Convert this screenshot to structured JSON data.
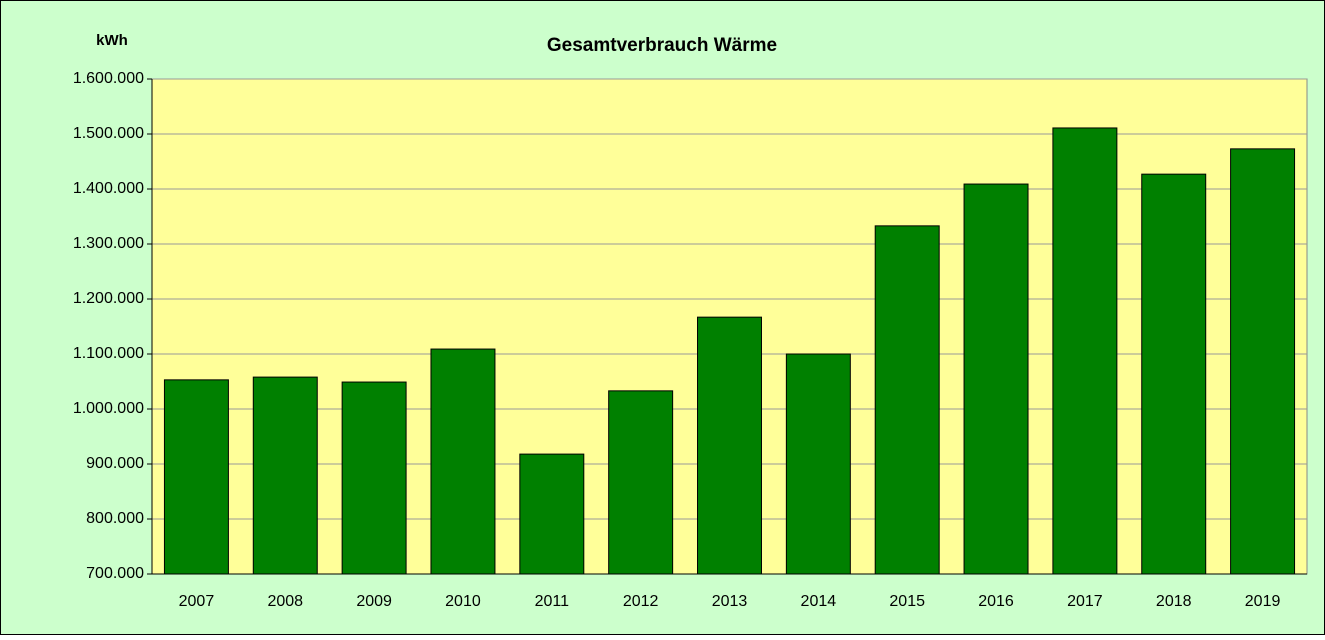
{
  "chart_data": {
    "type": "bar",
    "title": "Gesamtverbrauch Wärme",
    "y_label": "kWh",
    "categories": [
      "2007",
      "2008",
      "2009",
      "2010",
      "2011",
      "2012",
      "2013",
      "2014",
      "2015",
      "2016",
      "2017",
      "2018",
      "2019"
    ],
    "values": [
      1053000,
      1058000,
      1049000,
      1109000,
      918000,
      1033000,
      1167000,
      1100000,
      1333000,
      1409000,
      1511000,
      1427000,
      1473000
    ],
    "color": "#008000",
    "ylim": [
      700000,
      1600000
    ],
    "yticks": [
      {
        "value": 700000,
        "label": "700.000"
      },
      {
        "value": 800000,
        "label": "800.000"
      },
      {
        "value": 900000,
        "label": "900.000"
      },
      {
        "value": 1000000,
        "label": "1.000.000"
      },
      {
        "value": 1100000,
        "label": "1.100.000"
      },
      {
        "value": 1200000,
        "label": "1.200.000"
      },
      {
        "value": 1300000,
        "label": "1.300.000"
      },
      {
        "value": 1400000,
        "label": "1.400.000"
      },
      {
        "value": 1500000,
        "label": "1.500.000"
      },
      {
        "value": 1600000,
        "label": "1.600.000"
      }
    ],
    "grid": true
  }
}
